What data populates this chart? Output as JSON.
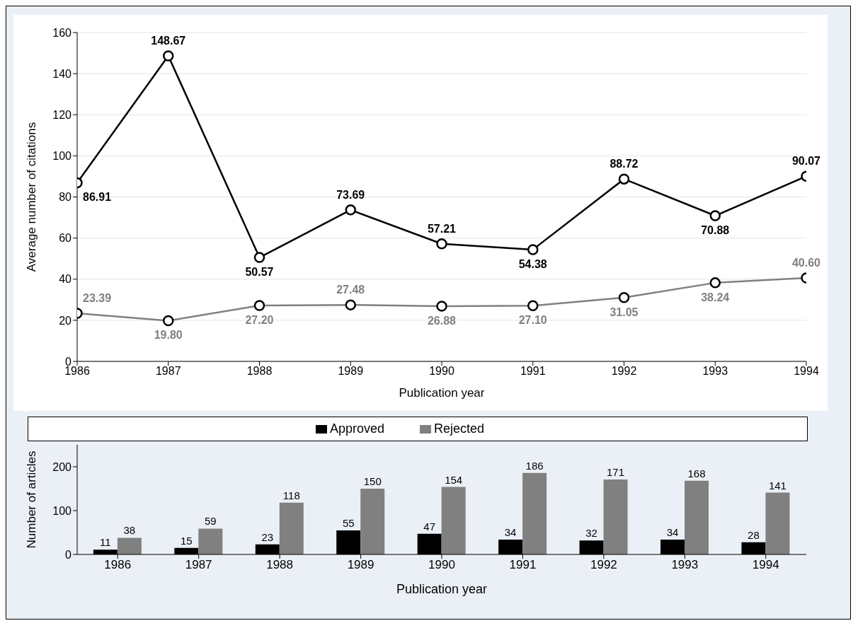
{
  "chart_data": [
    {
      "type": "line",
      "x": [
        1986,
        1987,
        1988,
        1989,
        1990,
        1991,
        1992,
        1993,
        1994
      ],
      "xlim": [
        1986,
        1994
      ],
      "xticks": [
        1986,
        1987,
        1988,
        1989,
        1990,
        1991,
        1992,
        1993,
        1994
      ],
      "ylim": [
        0,
        160
      ],
      "yticks": [
        0,
        20,
        40,
        60,
        80,
        100,
        120,
        140,
        160
      ],
      "xlabel": "Publication year",
      "ylabel": "Average number of citations",
      "grid": "y",
      "marker": "circle",
      "legend": false,
      "series": [
        {
          "color": "#000000",
          "values": [
            86.91,
            148.67,
            50.57,
            73.69,
            57.21,
            54.38,
            88.72,
            70.88,
            90.07
          ],
          "value_labels": [
            "86.91",
            "148.67",
            "50.57",
            "73.69",
            "57.21",
            "54.38",
            "88.72",
            "70.88",
            "90.07"
          ]
        },
        {
          "color": "#808080",
          "values": [
            23.39,
            19.8,
            27.2,
            27.48,
            26.88,
            27.1,
            31.05,
            38.24,
            40.6
          ],
          "value_labels": [
            "23.39",
            "19.80",
            "27.20",
            "27.48",
            "26.88",
            "27.10",
            "31.05",
            "38.24",
            "40.60"
          ]
        }
      ]
    },
    {
      "type": "bar",
      "categories": [
        "1986",
        "1987",
        "1988",
        "1989",
        "1990",
        "1991",
        "1992",
        "1993",
        "1994"
      ],
      "ylim": [
        0,
        250
      ],
      "yticks": [
        0,
        100,
        200
      ],
      "xlabel": "Publication year",
      "ylabel": "Number of articles",
      "legend": "top",
      "data_labels": true,
      "grid": false,
      "series": [
        {
          "name": "Approved",
          "color": "#000000",
          "values": [
            11,
            15,
            23,
            55,
            47,
            34,
            32,
            34,
            28
          ]
        },
        {
          "name": "Rejected",
          "color": "#808080",
          "values": [
            38,
            59,
            118,
            150,
            154,
            186,
            171,
            168,
            141
          ]
        }
      ]
    }
  ]
}
